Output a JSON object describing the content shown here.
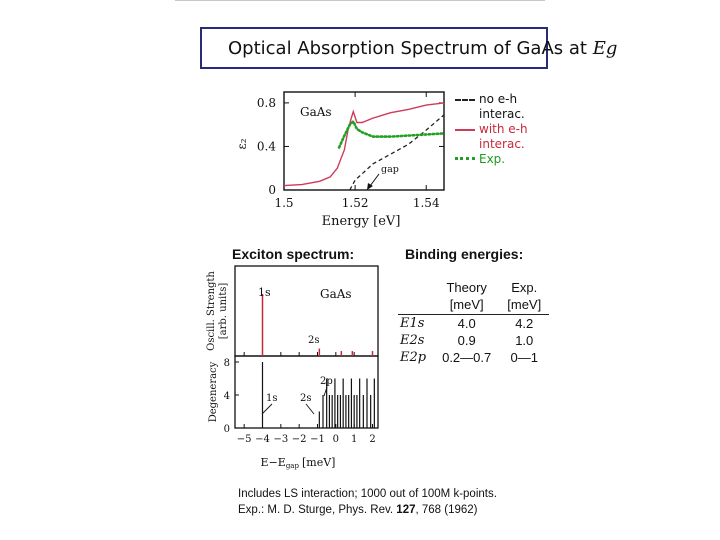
{
  "title": {
    "text": "Optical Absorption Spectrum of GaAs at",
    "symbol": "Eg"
  },
  "absorption_plot": {
    "ylabel": "ε₂",
    "xlabel": "Energy [eV]",
    "material_label": "GaAs",
    "annotation": "gap",
    "legend": {
      "no_eh_1": "no e-h",
      "no_eh_2": "interac.",
      "with_eh_1": "with e-h",
      "with_eh_2": "interac.",
      "exp": "Exp."
    },
    "colors": {
      "no_eh": "#222222",
      "with_eh": "#d03a5a",
      "exp": "#22a022"
    }
  },
  "exciton_section": {
    "heading": "Exciton spectrum:",
    "top_ylabel": "Oscill. Strength",
    "top_ylabel_2": "[arb. units]",
    "bottom_ylabel": "Degeneracy",
    "xlabel": "E−E",
    "xlabel_sub": "gap",
    "xlabel_unit": "[meV]",
    "material_label": "GaAs",
    "labels_top": {
      "s1": "1s",
      "s2": "2s"
    },
    "labels_bottom": {
      "s1": "1s",
      "s2": "2s",
      "p2": "2p"
    }
  },
  "binding_section": {
    "heading": "Binding energies:",
    "columns": [
      {
        "l1": "Theory",
        "l2": "[meV]"
      },
      {
        "l1": "Exp.",
        "l2": "[meV]"
      }
    ],
    "rows": [
      {
        "label": "E1s",
        "theory": "4.0",
        "exp": "4.2"
      },
      {
        "label": "E2s",
        "theory": "0.9",
        "exp": "1.0"
      },
      {
        "label": "E2p",
        "theory": "0.2—0.7",
        "exp": "0—1"
      }
    ]
  },
  "footnote": {
    "line1": "Includes LS interaction; 1000 out of 100M k-points.",
    "line2_pre": "Exp.: M. D. Sturge, Phys. Rev.",
    "line2_vol": "127",
    "line2_post": ", 768 (1962)"
  },
  "chart_data": [
    {
      "type": "line",
      "xlabel": "Energy [eV]",
      "ylabel": "ε₂",
      "xlim": [
        1.5,
        1.545
      ],
      "ylim": [
        0,
        0.9
      ],
      "xticks": [
        1.5,
        1.52,
        1.54
      ],
      "yticks": [
        0,
        0.4,
        0.8
      ],
      "series": [
        {
          "name": "no e-h interac.",
          "x": [
            1.5185,
            1.52,
            1.525,
            1.53,
            1.535,
            1.54,
            1.545
          ],
          "y": [
            0,
            0.09,
            0.24,
            0.33,
            0.42,
            0.55,
            0.69
          ]
        },
        {
          "name": "with e-h interac.",
          "x": [
            1.5,
            1.505,
            1.51,
            1.513,
            1.515,
            1.517,
            1.518,
            1.519,
            1.5195,
            1.5205,
            1.522,
            1.525,
            1.53,
            1.535,
            1.54,
            1.545
          ],
          "y": [
            0.04,
            0.05,
            0.08,
            0.12,
            0.2,
            0.37,
            0.55,
            0.67,
            0.72,
            0.62,
            0.62,
            0.66,
            0.71,
            0.74,
            0.78,
            0.8
          ]
        },
        {
          "name": "Exp.",
          "x": [
            1.5155,
            1.517,
            1.5185,
            1.5195,
            1.5205,
            1.522,
            1.525,
            1.53,
            1.535,
            1.54,
            1.545
          ],
          "y": [
            0.39,
            0.5,
            0.6,
            0.63,
            0.56,
            0.53,
            0.49,
            0.49,
            0.5,
            0.51,
            0.52
          ]
        }
      ]
    },
    {
      "type": "bar",
      "title": "Exciton spectrum",
      "ylabel": "Oscill. Strength [arb. units]",
      "xlim": [
        -5.5,
        2.3
      ],
      "x": [
        -4.0,
        -0.9,
        0.3,
        0.9,
        2.0
      ],
      "values": [
        1.0,
        0.12,
        0.08,
        0.08,
        0.08
      ]
    },
    {
      "type": "bar",
      "ylabel": "Degeneracy",
      "xlabel": "E−Egap [meV]",
      "xlim": [
        -5.5,
        2.3
      ],
      "ylim": [
        0,
        8
      ],
      "yticks": [
        0,
        4,
        8
      ],
      "xticks": [
        -5,
        -4,
        -3,
        -2,
        -1,
        0,
        1,
        2
      ],
      "x": [
        -4.0,
        -0.9,
        -0.7,
        -0.5,
        -0.35,
        -0.2,
        -0.05,
        0.1,
        0.25,
        0.4,
        0.55,
        0.7,
        0.85,
        1.0,
        1.15,
        1.3,
        1.5,
        1.7,
        1.9,
        2.1
      ],
      "values": [
        8,
        2,
        4,
        6,
        4,
        4,
        6,
        4,
        4,
        6,
        4,
        4,
        6,
        4,
        4,
        6,
        4,
        6,
        4,
        6
      ]
    }
  ]
}
